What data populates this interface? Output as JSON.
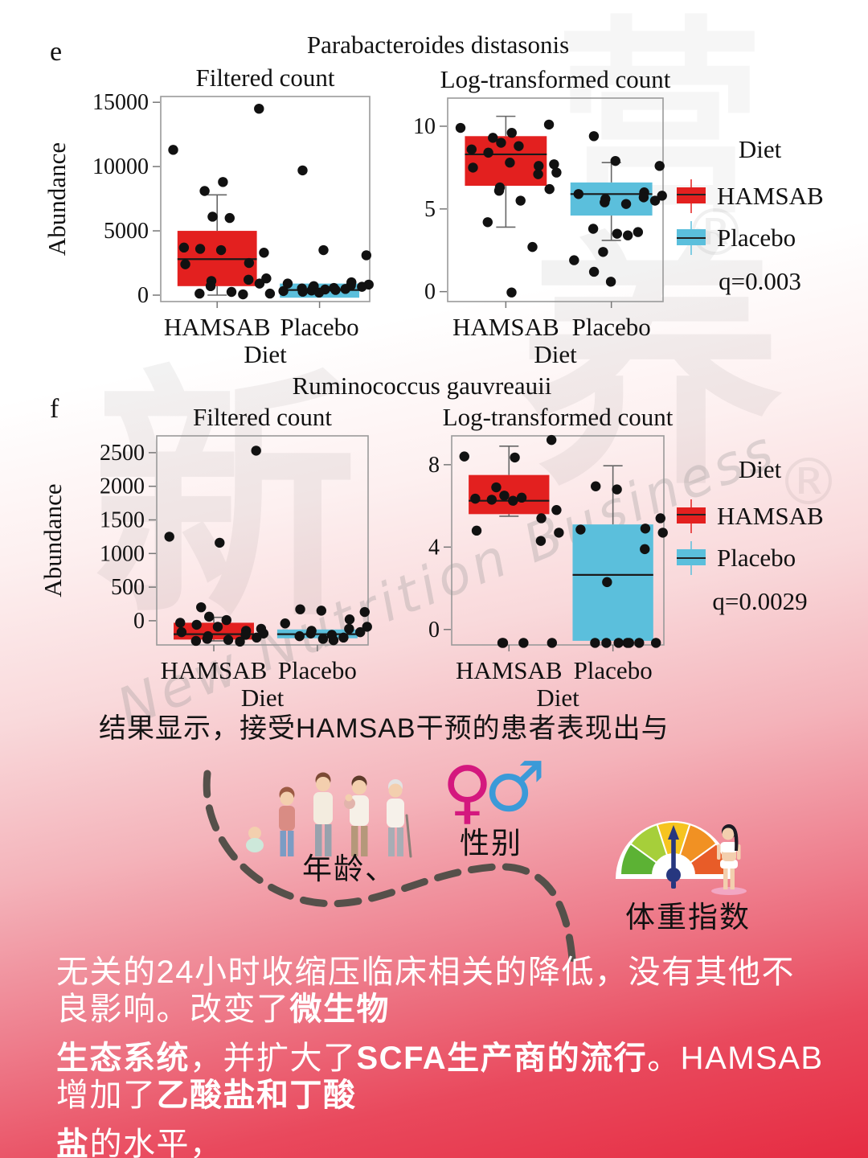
{
  "watermark": {
    "char_1": "新",
    "char_2": "营",
    "char_3": "养",
    "registered_mark": "®",
    "script_text": "New Nutrition Business"
  },
  "chart_data": [
    {
      "panel_letter": "e",
      "type": "box",
      "title": "Parabacteroides distasonis",
      "legend": {
        "title": "Diet",
        "items": [
          {
            "label": "HAMSAB",
            "color": "#e3201f"
          },
          {
            "label": "Placebo",
            "color": "#5bbfdc"
          }
        ],
        "q_value": "q=0.003"
      },
      "subplots": [
        {
          "title": "Filtered count",
          "ylabel": "Abundance",
          "xlabel": "Diet",
          "categories": [
            "HAMSAB",
            "Placebo"
          ],
          "yticks": [
            0,
            5000,
            10000,
            15000
          ],
          "ylim": [
            -500,
            15450
          ],
          "series": [
            {
              "name": "HAMSAB",
              "color": "#e3201f",
              "box": {
                "q1": 700,
                "median": 2800,
                "q3": 5000,
                "whisker_low": 0,
                "whisker_high": 7800
              },
              "points": [
                14500,
                11300,
                8800,
                8100,
                6100,
                6000,
                3700,
                3600,
                3500,
                3300,
                2500,
                2400,
                1300,
                1200,
                1100,
                900,
                700,
                250,
                120,
                60
              ]
            },
            {
              "name": "Placebo",
              "color": "#5bbfdc",
              "box": {
                "q1": -200,
                "median": 400,
                "q3": 900,
                "whisker_low": null,
                "whisker_high": null
              },
              "points": [
                9700,
                3500,
                3100,
                1000,
                900,
                820,
                760,
                700,
                650,
                600,
                560,
                520,
                480,
                440,
                400,
                360,
                320,
                270,
                200,
                120
              ]
            }
          ]
        },
        {
          "title": "Log-transformed count",
          "ylabel": null,
          "xlabel": "Diet",
          "categories": [
            "HAMSAB",
            "Placebo"
          ],
          "yticks": [
            0,
            5,
            10
          ],
          "ylim": [
            -0.6,
            11.7
          ],
          "series": [
            {
              "name": "HAMSAB",
              "color": "#e3201f",
              "box": {
                "q1": 6.4,
                "median": 8.3,
                "q3": 9.4,
                "whisker_low": 3.9,
                "whisker_high": 10.6
              },
              "points": [
                10.1,
                9.9,
                9.6,
                9.3,
                9.0,
                8.8,
                8.6,
                8.4,
                7.8,
                7.7,
                7.6,
                7.5,
                7.2,
                7.1,
                6.3,
                6.2,
                6.1,
                5.5,
                4.2,
                2.7,
                -0.05
              ]
            },
            {
              "name": "Placebo",
              "color": "#5bbfdc",
              "box": {
                "q1": 4.6,
                "median": 5.9,
                "q3": 6.6,
                "whisker_low": 3.1,
                "whisker_high": 7.8
              },
              "points": [
                9.4,
                7.9,
                7.6,
                6.0,
                5.9,
                5.8,
                5.7,
                5.6,
                5.5,
                5.4,
                5.3,
                3.8,
                3.6,
                3.5,
                3.4,
                2.4,
                1.9,
                1.2,
                0.6
              ]
            }
          ]
        }
      ]
    },
    {
      "panel_letter": "f",
      "type": "box",
      "title": "Ruminococcus gauvreauii",
      "legend": {
        "title": "Diet",
        "items": [
          {
            "label": "HAMSAB",
            "color": "#e3201f"
          },
          {
            "label": "Placebo",
            "color": "#5bbfdc"
          }
        ],
        "q_value": "q=0.0029"
      },
      "subplots": [
        {
          "title": "Filtered count",
          "ylabel": "Abundance",
          "xlabel": "Diet",
          "categories": [
            "HAMSAB",
            "Placebo"
          ],
          "yticks": [
            0,
            500,
            1000,
            1500,
            2000,
            2500
          ],
          "ylim": [
            -360,
            2750
          ],
          "series": [
            {
              "name": "HAMSAB",
              "color": "#e3201f",
              "box": {
                "q1": -280,
                "median": -200,
                "q3": -30,
                "whisker_low": -300,
                "whisker_high": 50
              },
              "points": [
                2530,
                1250,
                1160,
                200,
                60,
                10,
                -30,
                -60,
                -90,
                -120,
                -150,
                -170,
                -190,
                -210,
                -230,
                -250,
                -270,
                -285,
                -300,
                -310
              ]
            },
            {
              "name": "Placebo",
              "color": "#5bbfdc",
              "box": {
                "q1": -260,
                "median": -200,
                "q3": -130,
                "whisker_low": null,
                "whisker_high": null
              },
              "points": [
                170,
                150,
                130,
                20,
                -40,
                -90,
                -120,
                -150,
                -170,
                -190,
                -210,
                -230,
                -250,
                -270,
                -290
              ]
            }
          ]
        },
        {
          "title": "Log-transformed count",
          "ylabel": null,
          "xlabel": "Diet",
          "categories": [
            "HAMSAB",
            "Placebo"
          ],
          "yticks": [
            0,
            4,
            8
          ],
          "ylim": [
            -0.75,
            9.4
          ],
          "series": [
            {
              "name": "HAMSAB",
              "color": "#e3201f",
              "box": {
                "q1": 5.6,
                "median": 6.25,
                "q3": 7.5,
                "whisker_low": 5.5,
                "whisker_high": 8.9
              },
              "points": [
                9.2,
                8.4,
                8.35,
                6.9,
                6.5,
                6.4,
                6.35,
                6.3,
                6.25,
                5.8,
                5.4,
                4.8,
                4.7,
                4.3,
                -0.65,
                -0.65,
                -0.65,
                -0.65
              ]
            },
            {
              "name": "Placebo",
              "color": "#5bbfdc",
              "box": {
                "q1": -0.55,
                "median": 2.65,
                "q3": 5.1,
                "whisker_low": null,
                "whisker_high": 7.95
              },
              "points": [
                6.95,
                6.8,
                5.4,
                4.9,
                4.85,
                4.7,
                3.9,
                2.3,
                -0.65,
                -0.65,
                -0.65,
                -0.65,
                -0.65,
                -0.65,
                -0.65
              ]
            }
          ]
        }
      ]
    }
  ],
  "caption": "结果显示，接受HAMSAB干预的患者表现出与",
  "factors": {
    "age": {
      "label": "年龄、"
    },
    "gender": {
      "label": "性别",
      "female_symbol": "♀",
      "male_symbol": "♂",
      "female_color": "#d4187e",
      "male_color": "#3b9ad8"
    },
    "bmi": {
      "label": "体重指数",
      "gauge_colors": [
        "#5cb234",
        "#a6cf3a",
        "#f6c41f",
        "#f19123",
        "#e85c28"
      ],
      "needle_color": "#27377f"
    }
  },
  "bottom_text": {
    "text_color": "#ffffff",
    "lines": [
      [
        {
          "text": "无关的24小时收缩压临床相关的降低，没有其他不良影响。改变了",
          "bold": false
        },
        {
          "text": "微生物",
          "bold": true
        }
      ],
      [
        {
          "text": "生态系统",
          "bold": true
        },
        {
          "text": "，并扩大了",
          "bold": false
        },
        {
          "text": "SCFA生产商的流行",
          "bold": true
        },
        {
          "text": "。HAMSAB增加了",
          "bold": false
        },
        {
          "text": "乙酸盐和丁酸",
          "bold": true
        }
      ],
      [
        {
          "text": "盐",
          "bold": true
        },
        {
          "text": "的水平，",
          "bold": false
        }
      ]
    ]
  }
}
